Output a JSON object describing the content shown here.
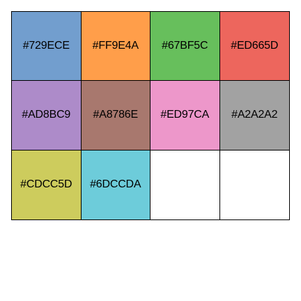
{
  "swatches": [
    {
      "label": "#729ECE",
      "color": "#729ECE"
    },
    {
      "label": "#FF9E4A",
      "color": "#FF9E4A"
    },
    {
      "label": "#67BF5C",
      "color": "#67BF5C"
    },
    {
      "label": "#ED665D",
      "color": "#ED665D"
    },
    {
      "label": "#AD8BC9",
      "color": "#AD8BC9"
    },
    {
      "label": "#A8786E",
      "color": "#A8786E"
    },
    {
      "label": "#ED97CA",
      "color": "#ED97CA"
    },
    {
      "label": "#A2A2A2",
      "color": "#A2A2A2"
    },
    {
      "label": "#CDCC5D",
      "color": "#CDCC5D"
    },
    {
      "label": "#6DCCDA",
      "color": "#6DCCDA"
    },
    {
      "label": "",
      "color": "#FFFFFF"
    },
    {
      "label": "",
      "color": "#FFFFFF"
    }
  ]
}
